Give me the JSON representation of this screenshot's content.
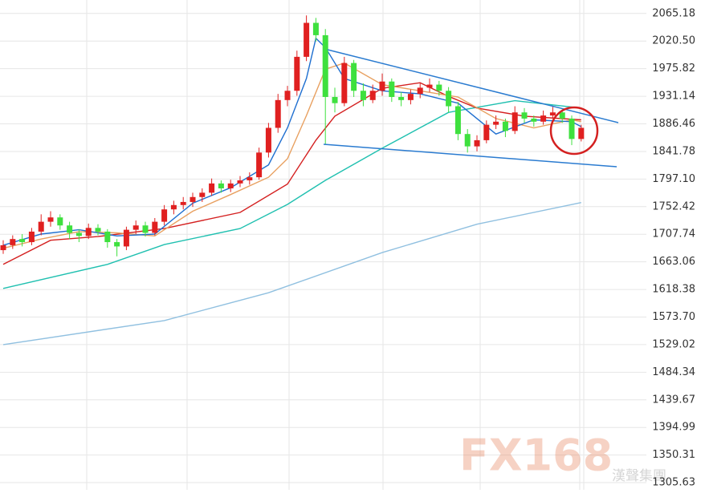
{
  "chart_data": {
    "type": "candlestick",
    "ylim": [
      1294,
      2087
    ],
    "xlim": [
      -0.34,
      67.88
    ],
    "yticks": [
      2065.18,
      {
        "value": 2020.5,
        "label": "2020.50"
      },
      1975.82,
      1931.14,
      1886.46,
      1841.78,
      {
        "value": 1797.1,
        "label": "1797.10"
      },
      1752.42,
      1707.74,
      1663.06,
      1618.38,
      {
        "value": 1573.7,
        "label": "1573.70"
      },
      1529.02,
      1484.34,
      1439.67,
      1394.99,
      1350.31,
      1305.63
    ],
    "grid": true,
    "up_color": "#e02020",
    "down_color": "#3ee03e",
    "candles": [
      [
        1682,
        1698,
        1676,
        1690
      ],
      [
        1690,
        1706,
        1684,
        1700
      ],
      [
        1700,
        1708,
        1688,
        1695
      ],
      [
        1695,
        1718,
        1690,
        1712
      ],
      [
        1712,
        1740,
        1706,
        1728
      ],
      [
        1728,
        1745,
        1720,
        1735
      ],
      [
        1735,
        1740,
        1715,
        1722
      ],
      [
        1722,
        1728,
        1700,
        1710
      ],
      [
        1710,
        1716,
        1695,
        1705
      ],
      [
        1705,
        1725,
        1700,
        1718
      ],
      [
        1718,
        1724,
        1706,
        1712
      ],
      [
        1712,
        1716,
        1686,
        1695
      ],
      [
        1695,
        1700,
        1672,
        1688
      ],
      [
        1688,
        1720,
        1682,
        1715
      ],
      [
        1715,
        1730,
        1708,
        1722
      ],
      [
        1722,
        1728,
        1704,
        1710
      ],
      [
        1710,
        1734,
        1706,
        1728
      ],
      [
        1728,
        1755,
        1722,
        1748
      ],
      [
        1748,
        1762,
        1740,
        1755
      ],
      [
        1755,
        1768,
        1748,
        1760
      ],
      [
        1760,
        1775,
        1752,
        1768
      ],
      [
        1768,
        1782,
        1760,
        1775
      ],
      [
        1775,
        1798,
        1770,
        1790
      ],
      [
        1790,
        1795,
        1775,
        1782
      ],
      [
        1782,
        1796,
        1776,
        1790
      ],
      [
        1790,
        1802,
        1784,
        1795
      ],
      [
        1795,
        1808,
        1788,
        1800
      ],
      [
        1800,
        1848,
        1796,
        1840
      ],
      [
        1840,
        1888,
        1832,
        1880
      ],
      [
        1880,
        1935,
        1872,
        1925
      ],
      [
        1925,
        1948,
        1915,
        1940
      ],
      [
        1940,
        2005,
        1932,
        1995
      ],
      [
        1995,
        2062,
        1988,
        2050
      ],
      [
        2050,
        2058,
        2020,
        2030
      ],
      [
        2030,
        2040,
        1853,
        1930
      ],
      [
        1930,
        1945,
        1905,
        1920
      ],
      [
        1920,
        1995,
        1915,
        1985
      ],
      [
        1985,
        1990,
        1930,
        1940
      ],
      [
        1940,
        1952,
        1915,
        1925
      ],
      [
        1925,
        1950,
        1920,
        1940
      ],
      [
        1940,
        1968,
        1932,
        1955
      ],
      [
        1955,
        1960,
        1922,
        1930
      ],
      [
        1930,
        1938,
        1915,
        1925
      ],
      [
        1925,
        1942,
        1918,
        1935
      ],
      [
        1935,
        1952,
        1928,
        1945
      ],
      [
        1945,
        1960,
        1938,
        1950
      ],
      [
        1950,
        1956,
        1932,
        1940
      ],
      [
        1940,
        1946,
        1905,
        1915
      ],
      [
        1915,
        1922,
        1860,
        1870
      ],
      [
        1870,
        1878,
        1840,
        1850
      ],
      [
        1850,
        1868,
        1842,
        1860
      ],
      [
        1860,
        1892,
        1855,
        1885
      ],
      [
        1885,
        1900,
        1878,
        1890
      ],
      [
        1890,
        1895,
        1865,
        1875
      ],
      [
        1875,
        1915,
        1870,
        1905
      ],
      [
        1905,
        1912,
        1888,
        1895
      ],
      [
        1895,
        1900,
        1882,
        1890
      ],
      [
        1890,
        1908,
        1885,
        1900
      ],
      [
        1900,
        1915,
        1895,
        1905
      ],
      [
        1905,
        1910,
        1888,
        1895
      ],
      [
        1895,
        1900,
        1852,
        1862
      ],
      [
        1862,
        1885,
        1858,
        1880
      ]
    ],
    "series": [
      {
        "color": "#90c0e0",
        "x": [
          0,
          17,
          28,
          40,
          50,
          61
        ],
        "values": [
          1529,
          1568,
          1613,
          1678,
          1724,
          1759
        ]
      },
      {
        "color": "#20c0b0",
        "x": [
          0,
          11,
          17,
          25,
          30,
          34,
          40,
          47,
          54,
          61
        ],
        "values": [
          1620,
          1659,
          1691,
          1717,
          1756,
          1795,
          1847,
          1905,
          1924,
          1912
        ]
      },
      {
        "color": "#d42020",
        "x": [
          0,
          5,
          10,
          17,
          25,
          30,
          33,
          35,
          40,
          44,
          47,
          50,
          55,
          61
        ],
        "values": [
          1659,
          1698,
          1704,
          1717,
          1743,
          1789,
          1860,
          1899,
          1944,
          1953,
          1931,
          1912,
          1899,
          1893
        ]
      },
      {
        "color": "#e8a060",
        "x": [
          0,
          4,
          8,
          12,
          16,
          20,
          24,
          28,
          30,
          32,
          34,
          36,
          40,
          44,
          48,
          52,
          56,
          60,
          61
        ],
        "values": [
          1685,
          1700,
          1712,
          1710,
          1705,
          1745,
          1772,
          1800,
          1830,
          1900,
          1975,
          1985,
          1950,
          1940,
          1930,
          1895,
          1880,
          1893,
          1890
        ]
      },
      {
        "color": "#1f6fd0",
        "x": [
          0,
          4,
          8,
          12,
          16,
          20,
          24,
          28,
          30,
          32,
          33,
          34,
          36,
          40,
          44,
          48,
          52,
          56,
          60,
          61
        ],
        "values": [
          1690,
          1708,
          1715,
          1705,
          1708,
          1758,
          1783,
          1820,
          1880,
          1960,
          2025,
          2010,
          1960,
          1940,
          1935,
          1920,
          1870,
          1893,
          1890,
          1882
        ]
      }
    ],
    "watermark": {
      "logo": "FX168",
      "text": "漢聲集團"
    }
  }
}
